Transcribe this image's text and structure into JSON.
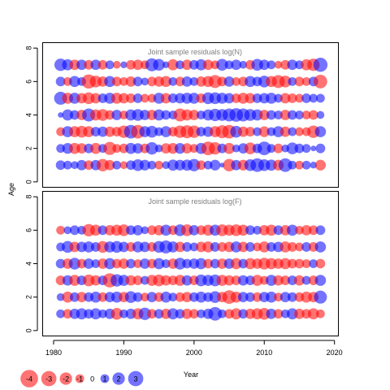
{
  "chart_data": {
    "type": "scatter",
    "variant": "bubble-residuals",
    "xlabel": "Year",
    "ylabel": "Age",
    "x_ticks": [
      1980,
      1990,
      2000,
      2010,
      2020
    ],
    "y_ticks": [
      0,
      2,
      4,
      6,
      8
    ],
    "xlim": [
      1978.5,
      2020.5
    ],
    "ylim": [
      -0.3,
      8.3
    ],
    "colors": {
      "positive": "#0000ff",
      "negative": "#ff0000",
      "axis": "#000000",
      "title": "#7f7f7f"
    },
    "bubble_opacity": 0.55,
    "legend": {
      "placement": "bottom-left",
      "values": [
        -4,
        -3,
        -2,
        -1,
        0,
        1,
        2,
        3
      ],
      "labels": [
        "-4",
        "-3",
        "-2",
        "-1",
        "0",
        "1",
        "2",
        "3"
      ]
    },
    "panels": [
      {
        "title": "Joint sample residuals log(N)",
        "ages": [
          1,
          2,
          3,
          4,
          5,
          6,
          7
        ],
        "years": [
          1981,
          1982,
          1983,
          1984,
          1985,
          1986,
          1987,
          1988,
          1989,
          1990,
          1991,
          1992,
          1993,
          1994,
          1995,
          1996,
          1997,
          1998,
          1999,
          2000,
          2001,
          2002,
          2003,
          2004,
          2005,
          2006,
          2007,
          2008,
          2009,
          2010,
          2011,
          2012,
          2013,
          2014,
          2015,
          2016,
          2017,
          2018
        ],
        "residuals": [
          [
            1.2,
            1.0,
            0.8,
            1.4,
            -1.2,
            1.4,
            -2.0,
            -1.4,
            1.0,
            -0.8,
            1.2,
            1.8,
            1.5,
            1.0,
            -1.0,
            0.8,
            1.6,
            1.5,
            1.6,
            2.0,
            -1.2,
            1.0,
            1.5,
            0.3,
            -2.0,
            1.4,
            -1.5,
            1.8,
            2.4,
            1.8,
            1.6,
            -1.5,
            2.4,
            1.0,
            -1.0,
            1.0,
            0.6,
            -1.5
          ],
          [
            1.0,
            1.5,
            -1.6,
            -1.4,
            1.2,
            -1.6,
            1.0,
            -2.2,
            -1.0,
            -1.2,
            1.6,
            1.4,
            -1.2,
            2.0,
            0.8,
            -1.4,
            -1.5,
            1.5,
            -1.4,
            -1.0,
            1.6,
            -2.4,
            -2.0,
            1.2,
            -1.6,
            0.8,
            1.4,
            -1.8,
            1.2,
            2.4,
            1.0,
            -1.2,
            0.8,
            1.8,
            1.2,
            1.0,
            0.4,
            1.2
          ],
          [
            -1.0,
            1.6,
            -1.6,
            -1.8,
            -1.6,
            1.2,
            1.4,
            -1.4,
            -1.2,
            -2.0,
            2.4,
            -2.4,
            1.6,
            1.8,
            1.0,
            1.6,
            -1.2,
            -2.0,
            -2.2,
            -2.0,
            1.2,
            1.4,
            -1.6,
            -2.2,
            -2.4,
            1.8,
            -1.4,
            -1.2,
            1.0,
            -1.5,
            1.0,
            1.6,
            -1.4,
            1.0,
            -1.0,
            -1.0,
            -2.0,
            1.6
          ],
          [
            0.4,
            1.6,
            1.2,
            -1.4,
            2.2,
            -1.6,
            -1.8,
            -1.2,
            1.4,
            -1.0,
            1.6,
            1.8,
            1.4,
            -1.4,
            1.6,
            1.2,
            1.0,
            -2.2,
            -1.6,
            -1.4,
            1.0,
            1.6,
            2.0,
            1.8,
            2.2,
            2.4,
            2.2,
            1.8,
            1.6,
            -1.4,
            1.2,
            1.0,
            -1.4,
            1.2,
            1.0,
            -1.0,
            -1.2,
            0.8
          ],
          [
            2.2,
            -1.6,
            1.6,
            -1.4,
            -1.8,
            -1.4,
            1.2,
            1.6,
            -1.6,
            -1.4,
            -1.2,
            1.2,
            -1.0,
            -1.0,
            1.6,
            -1.4,
            1.2,
            1.4,
            1.6,
            1.6,
            -1.2,
            1.8,
            1.8,
            1.6,
            1.4,
            -1.2,
            -1.6,
            -1.4,
            1.2,
            1.4,
            1.6,
            1.0,
            -1.4,
            -1.2,
            -1.0,
            1.2,
            1.0,
            1.0
          ],
          [
            1.2,
            -1.0,
            1.6,
            1.0,
            -2.6,
            -1.8,
            -1.4,
            1.6,
            -1.2,
            -1.0,
            -1.4,
            1.2,
            0.8,
            -1.2,
            -1.4,
            -1.6,
            1.0,
            -1.2,
            1.4,
            1.0,
            -1.4,
            -1.6,
            -2.2,
            -1.2,
            1.4,
            -1.0,
            -1.2,
            1.6,
            1.2,
            1.8,
            -1.6,
            -2.2,
            -1.8,
            1.0,
            -1.2,
            -1.0,
            1.2,
            -2.4
          ],
          [
            2.0,
            1.6,
            -1.4,
            1.4,
            -1.2,
            1.4,
            -1.2,
            1.0,
            -0.8,
            0.6,
            -1.2,
            -1.4,
            -1.0,
            2.2,
            1.8,
            0.6,
            -1.6,
            1.0,
            -1.4,
            1.2,
            1.6,
            -1.4,
            -1.0,
            1.8,
            1.0,
            1.4,
            0.8,
            -1.2,
            1.8,
            1.4,
            1.0,
            -0.8,
            -1.2,
            1.4,
            1.0,
            -1.6,
            -2.0,
            2.6
          ]
        ]
      },
      {
        "title": "Joint sample residuals log(F)",
        "ages": [
          1,
          2,
          3,
          4,
          5,
          6
        ],
        "years": [
          1981,
          1982,
          1983,
          1984,
          1985,
          1986,
          1987,
          1988,
          1989,
          1990,
          1991,
          1992,
          1993,
          1994,
          1995,
          1996,
          1997,
          1998,
          1999,
          2000,
          2001,
          2002,
          2003,
          2004,
          2005,
          2006,
          2007,
          2008,
          2009,
          2010,
          2011,
          2012,
          2013,
          2014,
          2015,
          2016,
          2017,
          2018
        ],
        "residuals": [
          [
            1.0,
            -1.2,
            1.4,
            1.6,
            1.2,
            1.6,
            1.0,
            1.4,
            -1.8,
            1.0,
            1.4,
            -1.6,
            2.0,
            -1.2,
            1.2,
            -1.4,
            1.6,
            1.2,
            -1.4,
            -1.2,
            1.0,
            1.4,
            2.4,
            1.0,
            -1.2,
            -1.6,
            1.2,
            -1.4,
            -1.6,
            -1.8,
            1.4,
            -1.2,
            1.0,
            1.6,
            -1.4,
            -1.2,
            -1.6,
            -1.0
          ],
          [
            0.8,
            -1.6,
            1.2,
            -1.4,
            1.2,
            1.6,
            -1.2,
            1.4,
            1.6,
            -1.4,
            1.8,
            1.2,
            -1.0,
            1.4,
            -1.2,
            1.6,
            1.0,
            -1.2,
            -1.4,
            1.2,
            1.6,
            1.2,
            1.8,
            -1.4,
            -2.4,
            -1.6,
            1.4,
            1.2,
            -1.2,
            1.4,
            1.6,
            -1.0,
            1.4,
            1.2,
            -1.2,
            -1.6,
            -1.4,
            2.2
          ],
          [
            -1.2,
            1.4,
            -1.6,
            1.2,
            -1.8,
            -1.4,
            1.2,
            -2.6,
            2.0,
            1.6,
            -1.4,
            -1.2,
            1.0,
            -1.6,
            -1.8,
            -1.4,
            -1.2,
            -1.6,
            1.4,
            -1.2,
            1.8,
            1.6,
            1.8,
            -1.6,
            -1.4,
            -1.2,
            1.4,
            1.2,
            -1.6,
            -1.0,
            1.6,
            -1.4,
            -1.2,
            1.2,
            -1.4,
            1.0,
            -1.2,
            1.6
          ],
          [
            1.2,
            -1.4,
            1.8,
            -1.2,
            1.4,
            1.0,
            -1.4,
            1.6,
            -1.2,
            -1.4,
            1.2,
            -1.0,
            1.4,
            -1.2,
            1.6,
            1.0,
            -1.4,
            1.8,
            1.2,
            1.4,
            1.6,
            -1.2,
            1.2,
            -1.4,
            1.4,
            -1.6,
            1.2,
            -1.6,
            -1.4,
            -1.8,
            -1.6,
            -1.4,
            -1.6,
            -1.2,
            -1.2,
            -1.0,
            1.0,
            -1.2
          ],
          [
            1.0,
            1.8,
            -1.4,
            1.4,
            1.6,
            1.2,
            -1.8,
            1.6,
            1.8,
            1.4,
            -1.2,
            1.6,
            1.4,
            -1.2,
            1.8,
            2.2,
            1.6,
            -1.4,
            1.2,
            1.0,
            -1.4,
            -1.6,
            1.2,
            -1.2,
            -1.4,
            1.6,
            -1.4,
            1.2,
            -1.0,
            -1.6,
            1.2,
            1.4,
            -1.6,
            -1.2,
            -1.0,
            1.2,
            -1.2,
            1.6
          ],
          [
            -1.0,
            0.8,
            1.2,
            1.0,
            -2.0,
            -1.6,
            1.2,
            -1.4,
            -1.6,
            -1.8,
            1.2,
            1.4,
            0.8,
            -1.2,
            -1.4,
            1.6,
            -1.2,
            1.8,
            -1.8,
            1.4,
            -1.2,
            -1.6,
            1.6,
            -1.8,
            -1.6,
            -1.8,
            -1.6,
            1.2,
            1.0,
            -1.4,
            -1.6,
            1.2,
            -1.4,
            1.6,
            -1.0,
            -1.4,
            -1.2,
            1.2
          ]
        ]
      }
    ]
  }
}
